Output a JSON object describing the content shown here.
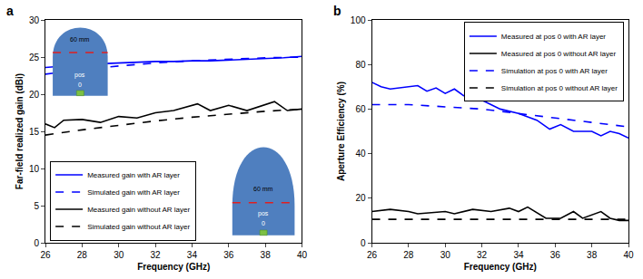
{
  "chart_data": [
    {
      "type": "line",
      "title": "a",
      "x_label": "Frequency (GHz)",
      "y_label": "Far-field realized gain (dBi)",
      "xlim": [
        26,
        40
      ],
      "xticks": [
        26,
        28,
        30,
        32,
        34,
        36,
        38,
        40
      ],
      "ylim": [
        0,
        30
      ],
      "yticks": [
        0,
        5,
        10,
        15,
        20,
        25,
        30
      ],
      "grid": false,
      "legend": "lower left",
      "annotations": [
        "60 mm",
        "pos",
        "0",
        "60 mm",
        "pos",
        "0"
      ],
      "series": [
        {
          "name": "Measured gain with AR layer",
          "color": "#0000ff",
          "line_style": "solid",
          "x": [
            26,
            27,
            28,
            29,
            30,
            31,
            32,
            33,
            34,
            35,
            36,
            37,
            38,
            39,
            40
          ],
          "values": [
            23.6,
            23.8,
            24.0,
            24.1,
            24.2,
            24.3,
            24.4,
            24.4,
            24.5,
            24.5,
            24.6,
            24.7,
            24.8,
            24.9,
            25.1
          ]
        },
        {
          "name": "Simulated gain with AR layer",
          "color": "#0000ff",
          "line_style": "dash",
          "x": [
            26,
            28,
            30,
            32,
            34,
            36,
            38,
            40
          ],
          "values": [
            22.7,
            23.3,
            23.8,
            24.2,
            24.5,
            24.7,
            24.9,
            25.0
          ]
        },
        {
          "name": "Measured gain without AR layer",
          "color": "#000000",
          "line_style": "solid",
          "x": [
            26,
            26.5,
            27,
            28,
            29,
            30,
            31,
            32,
            33,
            34.3,
            35,
            36,
            37,
            38.5,
            39.2,
            40
          ],
          "values": [
            16.0,
            15.5,
            16.5,
            16.6,
            16.2,
            17.0,
            16.8,
            17.5,
            17.8,
            18.7,
            17.8,
            18.5,
            17.8,
            19.0,
            17.8,
            18.0
          ]
        },
        {
          "name": "Simulated gain without AR layer",
          "color": "#000000",
          "line_style": "dash",
          "x": [
            26,
            28,
            30,
            32,
            34,
            36,
            38,
            40
          ],
          "values": [
            14.5,
            15.2,
            15.8,
            16.4,
            16.9,
            17.3,
            17.7,
            18.0
          ]
        }
      ]
    },
    {
      "type": "line",
      "title": "b",
      "x_label": "Frequency (GHz)",
      "y_label": "Aperture Efficiency (%)",
      "xlim": [
        26,
        40
      ],
      "xticks": [
        26,
        28,
        30,
        32,
        34,
        36,
        38,
        40
      ],
      "ylim": [
        0,
        100
      ],
      "yticks": [
        0,
        20,
        40,
        60,
        80,
        100
      ],
      "grid": false,
      "legend": "upper right",
      "series": [
        {
          "name": "Measured at pos 0 with AR layer",
          "color": "#0000ff",
          "line_style": "solid",
          "x": [
            26,
            26.5,
            27,
            28,
            28.5,
            29,
            29.5,
            30,
            30.5,
            31,
            31.5,
            32,
            33,
            34,
            35,
            35.7,
            36.3,
            37,
            38,
            38.5,
            39,
            39.5,
            40
          ],
          "values": [
            72,
            70,
            69,
            70,
            70.5,
            68,
            69.5,
            67,
            69,
            66,
            67,
            64,
            60,
            58,
            55,
            51,
            53,
            50,
            50,
            48,
            50,
            49,
            47
          ]
        },
        {
          "name": "Measured at pos 0 without AR layer",
          "color": "#000000",
          "line_style": "solid",
          "x": [
            26,
            27,
            28,
            28.5,
            30,
            30.5,
            31.5,
            32.5,
            33.5,
            34,
            34.5,
            35.5,
            36.3,
            37,
            37.5,
            38.5,
            39,
            39.5,
            40
          ],
          "values": [
            14,
            15,
            14,
            13,
            14,
            13,
            15,
            14,
            15.5,
            14,
            16,
            11,
            11,
            14,
            11,
            14,
            11,
            10,
            10
          ]
        },
        {
          "name": "Simulation at pos 0 with AR layer",
          "color": "#0000ff",
          "line_style": "dash",
          "x": [
            26,
            28,
            30,
            32,
            34,
            36,
            38,
            40
          ],
          "values": [
            62,
            62,
            61,
            60,
            58,
            56,
            54,
            52
          ]
        },
        {
          "name": "Simulation at pos 0 without AR layer",
          "color": "#000000",
          "line_style": "dash",
          "x": [
            26,
            28,
            30,
            32,
            34,
            36,
            38,
            40
          ],
          "values": [
            10.5,
            10.5,
            10.5,
            10.5,
            10.5,
            10.5,
            10.5,
            10.5
          ]
        }
      ]
    }
  ]
}
